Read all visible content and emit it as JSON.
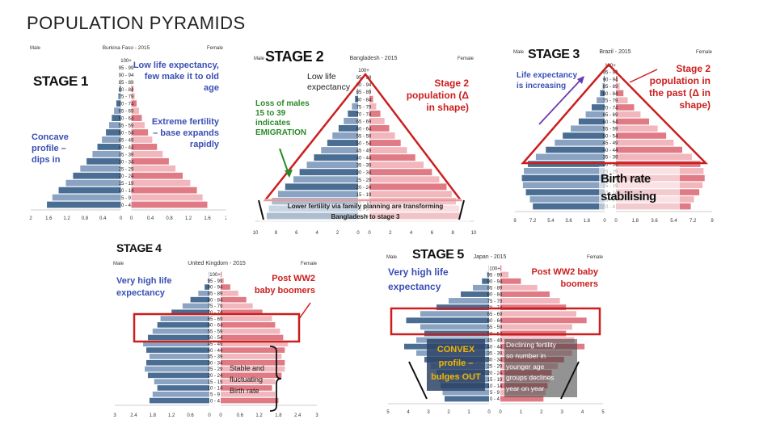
{
  "page_title": "POPULATION PYRAMIDS",
  "colors": {
    "male": "#4a6d94",
    "male_alt": "#8aa3c2",
    "female": "#e07a84",
    "female_alt": "#f2b7bc",
    "annotation_blue": "#3a4fb5",
    "annotation_red": "#cc1e1e",
    "annotation_green": "#2a8a2a",
    "stage_text": "#111111"
  },
  "chart_data": [
    {
      "type": "bar",
      "title": "Burkina Faso - 2015",
      "left_label": "Male",
      "right_label": "Female",
      "stage": "STAGE 1",
      "categories": [
        "100+",
        "95 - 99",
        "90 - 94",
        "85 - 89",
        "80 - 84",
        "75 - 79",
        "70 - 74",
        "65 - 69",
        "60 - 64",
        "55 - 59",
        "50 - 54",
        "45 - 49",
        "40 - 44",
        "35 - 39",
        "30 - 34",
        "25 - 29",
        "20 - 24",
        "15 - 19",
        "10 - 14",
        "5 - 9",
        "0 - 4"
      ],
      "series": [
        {
          "name": "Male",
          "values": [
            0,
            0,
            0,
            0.01,
            0.03,
            0.06,
            0.1,
            0.15,
            0.2,
            0.26,
            0.33,
            0.42,
            0.52,
            0.63,
            0.76,
            0.9,
            1.06,
            1.22,
            1.38,
            1.52,
            1.64
          ]
        },
        {
          "name": "Female",
          "values": [
            0,
            0,
            0,
            0.01,
            0.04,
            0.07,
            0.11,
            0.16,
            0.22,
            0.28,
            0.35,
            0.44,
            0.54,
            0.66,
            0.79,
            0.93,
            1.08,
            1.24,
            1.38,
            1.5,
            1.6
          ]
        }
      ],
      "xlim": [
        0,
        2
      ],
      "x_ticks": [
        "2",
        "1.6",
        "1.2",
        "0.8",
        "0.4",
        "0",
        "0",
        "0.4",
        "0.8",
        "1.2",
        "1.6",
        "2"
      ],
      "annotations": [
        {
          "text": "Low life expectancy, few make it to old age",
          "color": "blue-red"
        },
        {
          "text": "Extreme fertility – base expands rapidly",
          "color": "blue"
        },
        {
          "text": "Concave profile – dips in",
          "color": "blue"
        }
      ]
    },
    {
      "type": "bar",
      "title": "Bangladesh - 2015",
      "left_label": "Male",
      "right_label": "Female",
      "stage": "STAGE 2",
      "categories": [
        "100+",
        "95 - 99",
        "90 - 94",
        "85 - 89",
        "80 - 84",
        "75 - 79",
        "70 - 74",
        "65 - 69",
        "60 - 64",
        "55 - 59",
        "50 - 54",
        "45 - 49",
        "40 - 44",
        "35 - 39",
        "30 - 34",
        "25 - 29",
        "20 - 24",
        "15 - 19",
        "10 - 14",
        "5 - 9",
        "0 - 4"
      ],
      "series": [
        {
          "name": "Male",
          "values": [
            0,
            0,
            0,
            0.1,
            0.3,
            0.6,
            1.0,
            1.4,
            1.9,
            2.5,
            3.0,
            3.6,
            4.3,
            5.0,
            5.7,
            6.3,
            7.1,
            7.8,
            8.4,
            8.7,
            8.9
          ]
        },
        {
          "name": "Female",
          "values": [
            0,
            0,
            0,
            0.1,
            0.35,
            0.65,
            1.05,
            1.45,
            1.9,
            2.45,
            3.0,
            3.6,
            4.4,
            5.2,
            6.0,
            6.7,
            7.4,
            7.9,
            8.3,
            8.6,
            8.7
          ]
        }
      ],
      "xlim": [
        0,
        10
      ],
      "x_ticks": [
        "10",
        "8",
        "6",
        "4",
        "2",
        "0",
        "0",
        "2",
        "4",
        "6",
        "8",
        "10"
      ],
      "annotations": [
        {
          "text": "Low life expectancy",
          "color": "dark"
        },
        {
          "text": "Loss of males 15 to 39 indicates EMIGRATION",
          "color": "green"
        },
        {
          "text": "Stage 2 population (Δ in shape)",
          "color": "red"
        },
        {
          "text": "Lower fertility via family planning are transforming Bangladesh to stage 3",
          "color": "dark"
        }
      ]
    },
    {
      "type": "bar",
      "title": "Brazil - 2015",
      "left_label": "Male",
      "right_label": "Female",
      "stage": "STAGE 3",
      "categories": [
        "100+",
        "95 - 99",
        "90 - 94",
        "85 - 89",
        "80 - 84",
        "75 - 79",
        "70 - 74",
        "65 - 69",
        "60 - 64",
        "55 - 59",
        "50 - 54",
        "45 - 49",
        "40 - 44",
        "35 - 39",
        "30 - 34",
        "25 - 29",
        "20 - 24",
        "15 - 19",
        "10 - 14",
        "5 - 9",
        "0 - 4"
      ],
      "series": [
        {
          "name": "Male",
          "values": [
            0,
            0.02,
            0.08,
            0.2,
            0.45,
            0.8,
            1.3,
            1.9,
            2.6,
            3.4,
            4.2,
            5.0,
            5.9,
            6.9,
            7.7,
            8.1,
            8.3,
            8.2,
            7.9,
            7.5,
            7.2
          ]
        },
        {
          "name": "Female",
          "values": [
            0,
            0.05,
            0.15,
            0.35,
            0.7,
            1.1,
            1.7,
            2.3,
            3.1,
            3.9,
            4.7,
            5.4,
            6.2,
            7.1,
            7.9,
            8.2,
            8.3,
            8.1,
            7.8,
            7.3,
            7.0
          ]
        }
      ],
      "xlim": [
        0,
        9
      ],
      "x_ticks": [
        "9",
        "7.2",
        "5.4",
        "3.6",
        "1.8",
        "0",
        "0",
        "1.8",
        "3.6",
        "5.4",
        "7.2",
        "9"
      ],
      "annotations": [
        {
          "text": "Life expectancy is increasing",
          "color": "blue"
        },
        {
          "text": "Stage 2 population in the past (Δ in shape)",
          "color": "red"
        },
        {
          "text": "Birth rate stabilising",
          "color": "dark"
        }
      ]
    },
    {
      "type": "bar",
      "title": "United Kingdom - 2015",
      "left_label": "Male",
      "right_label": "Female",
      "stage": "STAGE 4",
      "categories": [
        "100+",
        "95 - 99",
        "90 - 94",
        "85 - 89",
        "80 - 84",
        "75 - 79",
        "70 - 74",
        "65 - 69",
        "60 - 64",
        "55 - 59",
        "50 - 54",
        "45 - 49",
        "40 - 44",
        "35 - 39",
        "30 - 34",
        "25 - 29",
        "20 - 24",
        "15 - 19",
        "10 - 14",
        "5 - 9",
        "0 - 4"
      ],
      "series": [
        {
          "name": "Male",
          "values": [
            0.01,
            0.04,
            0.15,
            0.35,
            0.6,
            0.85,
            1.2,
            1.55,
            1.65,
            1.8,
            1.95,
            2.1,
            2.0,
            1.9,
            2.0,
            2.05,
            1.95,
            1.75,
            1.65,
            1.8,
            1.9
          ]
        },
        {
          "name": "Female",
          "values": [
            0.03,
            0.1,
            0.3,
            0.55,
            0.8,
            1.0,
            1.3,
            1.6,
            1.7,
            1.85,
            1.95,
            2.1,
            2.0,
            1.9,
            2.0,
            2.0,
            1.9,
            1.7,
            1.6,
            1.7,
            1.8
          ]
        }
      ],
      "xlim": [
        0,
        3
      ],
      "x_ticks": [
        "3",
        "2.4",
        "1.8",
        "1.2",
        "0.6",
        "0",
        "0",
        "0.6",
        "1.2",
        "1.8",
        "2.4",
        "3"
      ],
      "annotations": [
        {
          "text": "Very high life expectancy",
          "color": "blue"
        },
        {
          "text": "Post WW2 baby boomers",
          "color": "red"
        },
        {
          "text": "Stable and fluctuating Birth rate",
          "color": "dark"
        }
      ]
    },
    {
      "type": "bar",
      "title": "Japan - 2015",
      "left_label": "Male",
      "right_label": "Female",
      "stage": "STAGE 5",
      "categories": [
        "100+",
        "95 - 99",
        "90 - 94",
        "85 - 89",
        "80 - 84",
        "75 - 79",
        "70 - 74",
        "65 - 69",
        "60 - 64",
        "55 - 59",
        "50 - 54",
        "45 - 49",
        "40 - 44",
        "35 - 39",
        "30 - 34",
        "25 - 29",
        "20 - 24",
        "15 - 19",
        "10 - 14",
        "5 - 9",
        "0 - 4"
      ],
      "series": [
        {
          "name": "Male",
          "values": [
            0.01,
            0.1,
            0.35,
            0.8,
            1.4,
            2.0,
            2.6,
            3.4,
            4.1,
            3.4,
            3.2,
            3.6,
            4.2,
            3.6,
            3.2,
            2.9,
            2.6,
            2.5,
            2.4,
            2.3,
            2.2
          ]
        },
        {
          "name": "Female",
          "values": [
            0.05,
            0.4,
            1.0,
            1.8,
            2.4,
            2.9,
            3.2,
            3.7,
            4.2,
            3.5,
            3.2,
            3.6,
            4.1,
            3.5,
            3.1,
            2.8,
            2.5,
            2.4,
            2.3,
            2.2,
            2.1
          ]
        }
      ],
      "xlim": [
        0,
        5
      ],
      "x_ticks": [
        "5",
        "4",
        "3",
        "2",
        "1",
        "0",
        "0",
        "1",
        "2",
        "3",
        "4",
        "5"
      ],
      "annotations": [
        {
          "text": "Very high life expectancy",
          "color": "blue"
        },
        {
          "text": "Post WW2 baby boomers",
          "color": "red"
        },
        {
          "text": "CONVEX profile – bulges OUT",
          "color": "orange"
        },
        {
          "text": "Declining fertility so number in younger age groups declines year on year",
          "color": "white"
        }
      ]
    }
  ]
}
